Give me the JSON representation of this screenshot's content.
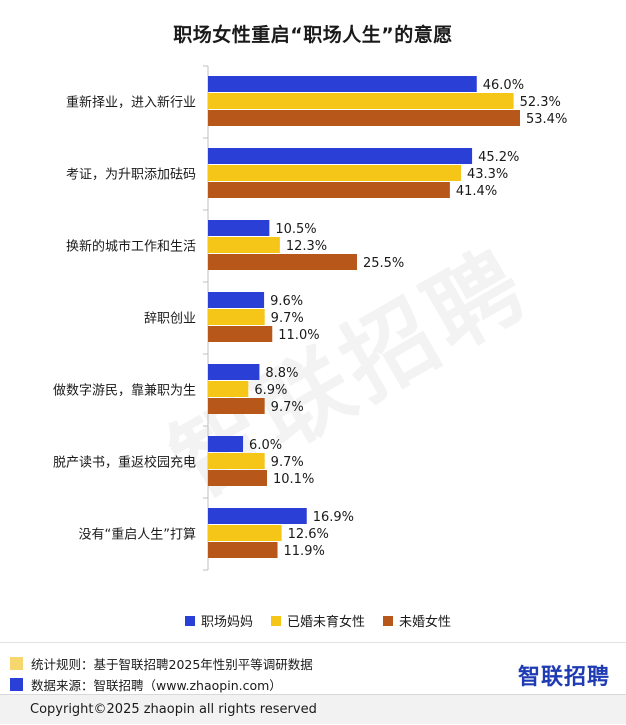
{
  "title": "职场女性重启“职场人生”的意愿",
  "colors": {
    "series1": "#2a3fd6",
    "series2": "#f5c518",
    "series3": "#b8571a",
    "axis": "#bfbfbf",
    "brand": "#1f3bb3"
  },
  "chart_data": {
    "type": "bar",
    "orientation": "horizontal",
    "title": "职场女性重启“职场人生”的意愿",
    "categories": [
      "重新择业，进入新行业",
      "考证，为升职添加砝码",
      "换新的城市工作和生活",
      "辞职创业",
      "做数字游民，靠兼职为生",
      "脱产读书，重返校园充电",
      "没有“重启人生”打算"
    ],
    "series": [
      {
        "name": "职场妈妈",
        "values": [
          46.0,
          45.2,
          10.5,
          9.6,
          8.8,
          6.0,
          16.9
        ],
        "labels": [
          "46.0%",
          "45.2%",
          "10.5%",
          "9.6%",
          "8.8%",
          "6.0%",
          "16.9%"
        ]
      },
      {
        "name": "已婚未育女性",
        "values": [
          52.3,
          43.3,
          12.3,
          9.7,
          6.9,
          9.7,
          12.6
        ],
        "labels": [
          "52.3%",
          "43.3%",
          "12.3%",
          "9.7%",
          "6.9%",
          "9.7%",
          "12.6%"
        ]
      },
      {
        "name": "未婚女性",
        "values": [
          53.4,
          41.4,
          25.5,
          11.0,
          9.7,
          10.1,
          11.9
        ],
        "labels": [
          "53.4%",
          "41.4%",
          "25.5%",
          "11.0%",
          "9.7%",
          "10.1%",
          "11.9%"
        ]
      }
    ],
    "unit": "%",
    "xlim": [
      0,
      60
    ],
    "grid": false,
    "legend_position": "bottom"
  },
  "watermark": "智联招聘",
  "legend": [
    "职场妈妈",
    "已婚未育女性",
    "未婚女性"
  ],
  "footer": {
    "note1": "统计规则：基于智联招聘2025年性别平等调研数据",
    "note2": "数据来源：智联招聘（www.zhaopin.com）",
    "brand": "智联招聘",
    "copyright": "Copyright©2025 zhaopin all rights reserved"
  }
}
